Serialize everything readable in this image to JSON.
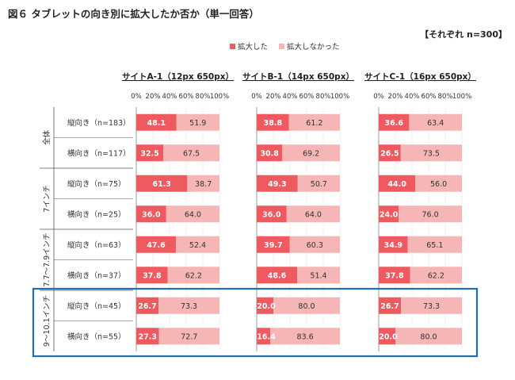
{
  "title": "図６ タブレットの向き別に拡大したか否か（単一回答）",
  "sample_note": "【それぞれ n=300】",
  "legend": {
    "enlarged": "拡大した",
    "not_enlarged": "拡大しなかった"
  },
  "colors": {
    "enlarged": "#ee5a5f",
    "not_enlarged": "#f6b6b6",
    "highlight_box": "#1f6fb0",
    "divider": "#555555",
    "grid": "#bbbbbb"
  },
  "chart_data": {
    "type": "bar",
    "stacked": true,
    "orientation": "horizontal",
    "x_ticks": [
      "0%",
      "20%",
      "40%",
      "60%",
      "80%",
      "100%"
    ],
    "xlim": [
      0,
      100
    ],
    "groups": [
      {
        "label": "全体",
        "rows": [
          {
            "label": "縦向き（n=183）"
          },
          {
            "label": "横向き（n=117）"
          }
        ]
      },
      {
        "label": "7インチ",
        "rows": [
          {
            "label": "縦向き（n=75）"
          },
          {
            "label": "横向き（n=25）"
          }
        ]
      },
      {
        "label": "7.7～7.9インチ",
        "rows": [
          {
            "label": "縦向き（n=63）"
          },
          {
            "label": "横向き（n=37）"
          }
        ]
      },
      {
        "label": "9～10.1インチ",
        "highlighted": true,
        "rows": [
          {
            "label": "縦向き（n=45）"
          },
          {
            "label": "横向き（n=55）"
          }
        ]
      }
    ],
    "panels": [
      {
        "title": "サイトA-1（12px 650px）",
        "series": [
          {
            "name": "拡大した",
            "values": [
              48.1,
              32.5,
              61.3,
              36.0,
              47.6,
              37.8,
              26.7,
              27.3
            ]
          },
          {
            "name": "拡大しなかった",
            "values": [
              51.9,
              67.5,
              38.7,
              64.0,
              52.4,
              62.2,
              73.3,
              72.7
            ]
          }
        ]
      },
      {
        "title": "サイトB-1（14px 650px）",
        "series": [
          {
            "name": "拡大した",
            "values": [
              38.8,
              30.8,
              49.3,
              36.0,
              39.7,
              48.6,
              20.0,
              16.4
            ]
          },
          {
            "name": "拡大しなかった",
            "values": [
              61.2,
              69.2,
              50.7,
              64.0,
              60.3,
              51.4,
              80.0,
              83.6
            ]
          }
        ]
      },
      {
        "title": "サイトC-1（16px 650px）",
        "series": [
          {
            "name": "拡大した",
            "values": [
              36.6,
              26.5,
              44.0,
              24.0,
              34.9,
              37.8,
              26.7,
              20.0
            ]
          },
          {
            "name": "拡大しなかった",
            "values": [
              63.4,
              73.5,
              56.0,
              76.0,
              65.1,
              62.2,
              73.3,
              80.0
            ]
          }
        ]
      }
    ]
  }
}
